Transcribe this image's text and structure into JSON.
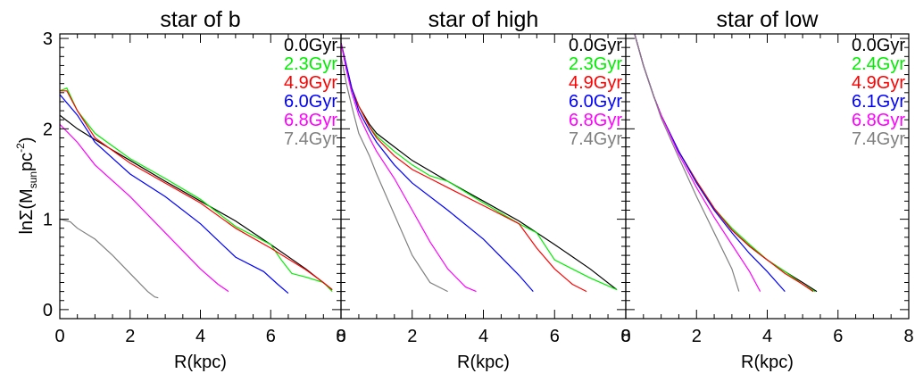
{
  "figure": {
    "ylabel": "lnΣ(M",
    "ylabel_sub": "sun",
    "ylabel_mid": "pc",
    "ylabel_sup": "-2",
    "ylabel_end": ")"
  },
  "chart_data": [
    {
      "type": "line",
      "title": "star of b",
      "xlabel": "R(kpc)",
      "xlim": [
        0,
        8
      ],
      "ylim": [
        -0.1,
        3.05
      ],
      "xticks": [
        "0",
        "2",
        "4",
        "6",
        "8"
      ],
      "yticks": [
        "0",
        "1",
        "2",
        "3"
      ],
      "series": [
        {
          "name": "0.0Gyr",
          "color": "#000000",
          "x": [
            0,
            0.5,
            1,
            2,
            3,
            4,
            5,
            6,
            7,
            7.75
          ],
          "y": [
            2.15,
            2.0,
            1.88,
            1.65,
            1.42,
            1.2,
            0.98,
            0.72,
            0.45,
            0.22
          ]
        },
        {
          "name": "2.3Gyr",
          "color": "#00ee00",
          "x": [
            0,
            0.2,
            0.5,
            1,
            2,
            3,
            4,
            5,
            6,
            6.3,
            6.6,
            7,
            7.5,
            7.75
          ],
          "y": [
            2.42,
            2.45,
            2.2,
            1.95,
            1.67,
            1.45,
            1.22,
            0.92,
            0.72,
            0.55,
            0.4,
            0.36,
            0.3,
            0.2
          ]
        },
        {
          "name": "4.9Gyr",
          "color": "#ff0000",
          "x": [
            0,
            0.2,
            0.5,
            1,
            2,
            3,
            4,
            5,
            6,
            7,
            7.5,
            7.75
          ],
          "y": [
            2.42,
            2.42,
            2.2,
            1.9,
            1.62,
            1.4,
            1.18,
            0.9,
            0.68,
            0.44,
            0.3,
            0.22
          ]
        },
        {
          "name": "6.0Gyr",
          "color": "#0000ff",
          "x": [
            0,
            0.5,
            1,
            2,
            3,
            4,
            5,
            5.8,
            6.2,
            6.5
          ],
          "y": [
            2.38,
            2.15,
            1.85,
            1.5,
            1.25,
            0.95,
            0.58,
            0.42,
            0.28,
            0.18
          ]
        },
        {
          "name": "6.8Gyr",
          "color": "#ff00ff",
          "x": [
            0,
            0.5,
            1,
            2,
            3,
            4,
            4.5,
            4.8
          ],
          "y": [
            2.05,
            1.85,
            1.6,
            1.25,
            0.85,
            0.45,
            0.28,
            0.2
          ]
        },
        {
          "name": "7.4Gyr",
          "color": "#808080",
          "x": [
            0,
            0.3,
            0.5,
            1,
            1.5,
            2,
            2.5,
            2.7,
            2.8
          ],
          "y": [
            1.0,
            0.97,
            0.9,
            0.78,
            0.6,
            0.4,
            0.2,
            0.14,
            0.13
          ]
        }
      ]
    },
    {
      "type": "line",
      "title": "star of high",
      "xlabel": "R(kpc)",
      "xlim": [
        0,
        8
      ],
      "ylim": [
        -0.1,
        3.05
      ],
      "xticks": [
        "0",
        "2",
        "4",
        "6",
        "8"
      ],
      "yticks": [
        "0",
        "1",
        "2",
        "3"
      ],
      "series": [
        {
          "name": "0.0Gyr",
          "color": "#000000",
          "x": [
            0,
            0.15,
            0.3,
            0.5,
            0.8,
            1,
            1.5,
            2,
            3,
            4,
            5,
            6,
            7,
            7.75
          ],
          "y": [
            2.95,
            2.7,
            2.45,
            2.25,
            2.05,
            1.95,
            1.8,
            1.65,
            1.42,
            1.2,
            0.98,
            0.72,
            0.45,
            0.22
          ]
        },
        {
          "name": "2.3Gyr",
          "color": "#00ee00",
          "x": [
            0,
            0.15,
            0.3,
            0.5,
            0.8,
            1,
            1.5,
            2,
            2.5,
            3,
            3.5,
            4,
            5,
            5.5,
            6,
            7,
            7.75
          ],
          "y": [
            2.95,
            2.7,
            2.45,
            2.25,
            2.02,
            1.92,
            1.75,
            1.6,
            1.48,
            1.42,
            1.3,
            1.18,
            0.95,
            0.85,
            0.55,
            0.35,
            0.22
          ]
        },
        {
          "name": "4.9Gyr",
          "color": "#ff0000",
          "x": [
            0,
            0.15,
            0.3,
            0.5,
            0.8,
            1,
            1.5,
            2,
            2.5,
            3,
            4,
            5,
            5.5,
            6,
            6.5,
            6.9
          ],
          "y": [
            2.95,
            2.7,
            2.45,
            2.25,
            2.02,
            1.9,
            1.7,
            1.55,
            1.45,
            1.35,
            1.15,
            0.95,
            0.68,
            0.45,
            0.28,
            0.2
          ]
        },
        {
          "name": "6.0Gyr",
          "color": "#0000ff",
          "x": [
            0,
            0.15,
            0.3,
            0.5,
            0.8,
            1,
            1.5,
            2,
            3,
            4,
            5,
            5.4
          ],
          "y": [
            2.95,
            2.7,
            2.45,
            2.2,
            1.98,
            1.85,
            1.6,
            1.4,
            1.1,
            0.78,
            0.38,
            0.2
          ]
        },
        {
          "name": "6.8Gyr",
          "color": "#ff00ff",
          "x": [
            0,
            0.15,
            0.3,
            0.5,
            0.8,
            1,
            1.5,
            2,
            2.5,
            3,
            3.5,
            3.8
          ],
          "y": [
            2.95,
            2.65,
            2.4,
            2.15,
            1.9,
            1.75,
            1.45,
            1.1,
            0.75,
            0.45,
            0.25,
            0.2
          ]
        },
        {
          "name": "7.4Gyr",
          "color": "#808080",
          "x": [
            0,
            0.15,
            0.3,
            0.5,
            0.8,
            1,
            1.5,
            2,
            2.5,
            3
          ],
          "y": [
            2.8,
            2.5,
            2.25,
            1.95,
            1.7,
            1.5,
            1.05,
            0.6,
            0.3,
            0.2
          ]
        }
      ]
    },
    {
      "type": "line",
      "title": "star of low",
      "xlabel": "R(kpc)",
      "xlim": [
        0,
        8
      ],
      "ylim": [
        -0.1,
        3.05
      ],
      "xticks": [
        "0",
        "2",
        "4",
        "6",
        "8"
      ],
      "yticks": [
        "0",
        "1",
        "2",
        "3"
      ],
      "series": [
        {
          "name": "0.0Gyr",
          "color": "#000000",
          "x": [
            0.25,
            0.5,
            0.8,
            1,
            1.5,
            2,
            2.5,
            3,
            3.5,
            4,
            4.5,
            5,
            5.4
          ],
          "y": [
            3.05,
            2.7,
            2.35,
            2.15,
            1.75,
            1.42,
            1.12,
            0.88,
            0.7,
            0.55,
            0.42,
            0.3,
            0.2
          ]
        },
        {
          "name": "2.4Gyr",
          "color": "#00ee00",
          "x": [
            0.25,
            0.5,
            0.8,
            1,
            1.5,
            2,
            2.5,
            3,
            3.5,
            4,
            4.5,
            5,
            5.35
          ],
          "y": [
            3.05,
            2.7,
            2.35,
            2.15,
            1.75,
            1.42,
            1.12,
            0.9,
            0.72,
            0.55,
            0.42,
            0.28,
            0.2
          ]
        },
        {
          "name": "4.9Gyr",
          "color": "#ff0000",
          "x": [
            0.25,
            0.5,
            0.8,
            1,
            1.5,
            2,
            2.5,
            3,
            3.5,
            4,
            4.5,
            5,
            5.3
          ],
          "y": [
            3.05,
            2.7,
            2.35,
            2.15,
            1.75,
            1.42,
            1.12,
            0.88,
            0.7,
            0.55,
            0.4,
            0.28,
            0.2
          ]
        },
        {
          "name": "6.1Gyr",
          "color": "#0000ff",
          "x": [
            0.25,
            0.5,
            0.8,
            1,
            1.5,
            2,
            2.5,
            3,
            3.5,
            4,
            4.5
          ],
          "y": [
            3.05,
            2.7,
            2.35,
            2.15,
            1.75,
            1.4,
            1.1,
            0.85,
            0.62,
            0.42,
            0.2
          ]
        },
        {
          "name": "6.8Gyr",
          "color": "#ff00ff",
          "x": [
            0.25,
            0.5,
            0.8,
            1,
            1.5,
            2,
            2.5,
            3,
            3.5,
            3.8
          ],
          "y": [
            3.05,
            2.7,
            2.35,
            2.15,
            1.72,
            1.35,
            1.02,
            0.72,
            0.42,
            0.2
          ]
        },
        {
          "name": "7.4Gyr",
          "color": "#808080",
          "x": [
            0.25,
            0.5,
            0.8,
            1,
            1.5,
            2,
            2.5,
            3,
            3.2
          ],
          "y": [
            3.05,
            2.7,
            2.35,
            2.12,
            1.68,
            1.25,
            0.85,
            0.45,
            0.2
          ]
        }
      ]
    }
  ]
}
